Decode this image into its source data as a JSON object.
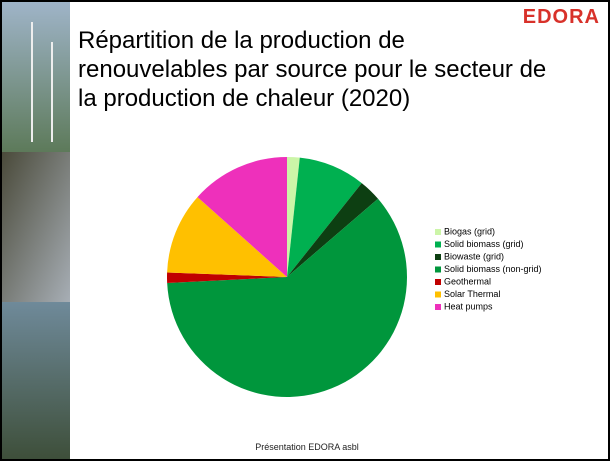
{
  "logo": "EDORA",
  "footer": "Présentation EDORA asbl",
  "chart_data": {
    "type": "pie",
    "title": [
      "Répartition de la production de",
      "renouvelables par source pour le secteur de",
      "la production de chaleur (2020)"
    ],
    "categories": [
      "Biogas (grid)",
      "Solid biomass (grid)",
      "Biowaste (grid)",
      "Solid biomass (non-grid)",
      "Geothermal",
      "Solar Thermal",
      "Heat pumps"
    ],
    "values": [
      1.7,
      9,
      3,
      60.5,
      1.4,
      11,
      13.4
    ],
    "colors": [
      "#ccf5a8",
      "#00b050",
      "#0d3f12",
      "#00963c",
      "#c00000",
      "#ffc000",
      "#ee30bb"
    ],
    "legend": "right"
  }
}
